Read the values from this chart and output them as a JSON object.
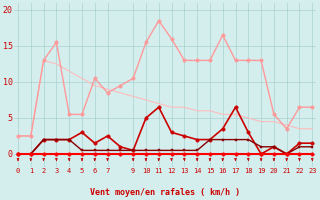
{
  "x": [
    0,
    1,
    2,
    3,
    4,
    5,
    6,
    7,
    8,
    9,
    10,
    11,
    12,
    13,
    14,
    15,
    16,
    17,
    18,
    19,
    20,
    21,
    22,
    23
  ],
  "series": [
    {
      "name": "rafales_light",
      "color": "#ff9999",
      "linewidth": 1.0,
      "markersize": 2.5,
      "marker": "o",
      "values": [
        2.5,
        2.5,
        13,
        15.5,
        5.5,
        5.5,
        10.5,
        8.5,
        9.5,
        10.5,
        15.5,
        18.5,
        16,
        13,
        13,
        13,
        16.5,
        13,
        13,
        13,
        5.5,
        3.5,
        6.5,
        6.5
      ]
    },
    {
      "name": "diagonal_light",
      "color": "#ffbbbb",
      "linewidth": 0.8,
      "markersize": 0,
      "marker": null,
      "values": [
        2.5,
        2.5,
        13,
        12.5,
        11.5,
        10.5,
        9.5,
        9.0,
        8.5,
        8.0,
        7.5,
        7.0,
        6.5,
        6.5,
        6.0,
        6.0,
        5.5,
        5.5,
        5.0,
        4.5,
        4.5,
        4.0,
        3.5,
        3.5
      ]
    },
    {
      "name": "vent_moyen_dark",
      "color": "#cc0000",
      "linewidth": 1.2,
      "markersize": 2.5,
      "marker": "o",
      "values": [
        0,
        0,
        2,
        2,
        2,
        3,
        1.5,
        2.5,
        1.0,
        0.5,
        5,
        6.5,
        3,
        2.5,
        2,
        2,
        3.5,
        6.5,
        3,
        0,
        1,
        0,
        1.5,
        1.5
      ]
    },
    {
      "name": "vent_bas_dark",
      "color": "#880000",
      "linewidth": 1.0,
      "markersize": 2,
      "marker": "s",
      "values": [
        0,
        0,
        2,
        2,
        2,
        0.5,
        0.5,
        0.5,
        0.5,
        0.5,
        0.5,
        0.5,
        0.5,
        0.5,
        0.5,
        2,
        2,
        2,
        2,
        1,
        1,
        0,
        1,
        1
      ]
    },
    {
      "name": "zero_line_dark",
      "color": "#ff0000",
      "linewidth": 1.5,
      "markersize": 2.5,
      "marker": "o",
      "values": [
        0,
        0,
        0,
        0,
        0,
        0,
        0,
        0,
        0,
        0,
        0,
        0,
        0,
        0,
        0,
        0,
        0,
        0,
        0,
        0,
        0,
        0,
        0,
        0
      ]
    }
  ],
  "xlabel": "Vent moyen/en rafales ( km/h )",
  "xlim": [
    -0.3,
    23.3
  ],
  "ylim": [
    -1.8,
    21
  ],
  "yticks": [
    0,
    5,
    10,
    15,
    20
  ],
  "xticks": [
    0,
    1,
    2,
    3,
    4,
    5,
    6,
    7,
    9,
    10,
    11,
    12,
    13,
    14,
    15,
    16,
    17,
    18,
    19,
    20,
    21,
    22,
    23
  ],
  "xtick_labels": [
    "0",
    "1",
    "2",
    "3",
    "4",
    "5",
    "6",
    "7",
    "9",
    "10",
    "11",
    "12",
    "13",
    "14",
    "15",
    "16",
    "17",
    "18",
    "19",
    "20",
    "21",
    "22",
    "23"
  ],
  "bg_color": "#d4eeee",
  "grid_color": "#aad0d0",
  "xlabel_color": "#cc0000",
  "tick_color": "#cc0000"
}
